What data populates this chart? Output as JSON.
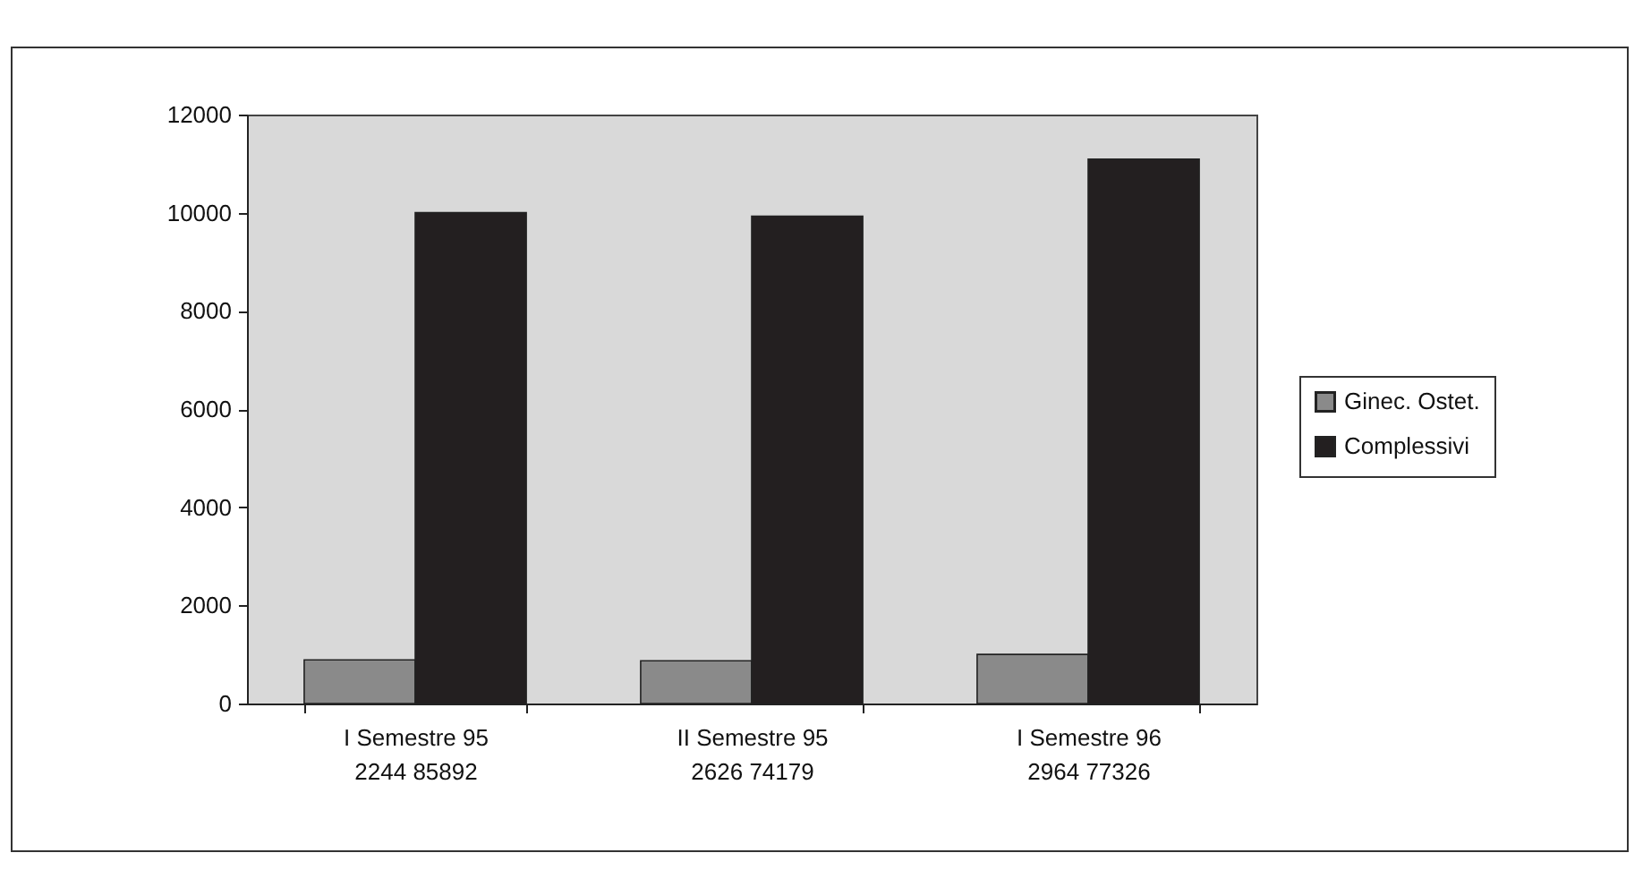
{
  "chart_data": {
    "type": "bar",
    "categories": [
      "I Semestre 95\n2244 85892",
      "II Semestre 95\n2626 74179",
      "I Semestre 96\n2964 77326"
    ],
    "series": [
      {
        "name": "Ginec. Ostet.",
        "color": "#8a8a8a",
        "values": [
          890,
          870,
          1000
        ]
      },
      {
        "name": "Complessivi",
        "color": "#231f20",
        "values": [
          10000,
          9930,
          11090
        ]
      }
    ],
    "ylim": [
      0,
      12000
    ],
    "yticks": [
      0,
      2000,
      4000,
      6000,
      8000,
      10000,
      12000
    ],
    "grid": false,
    "legend": "right"
  }
}
